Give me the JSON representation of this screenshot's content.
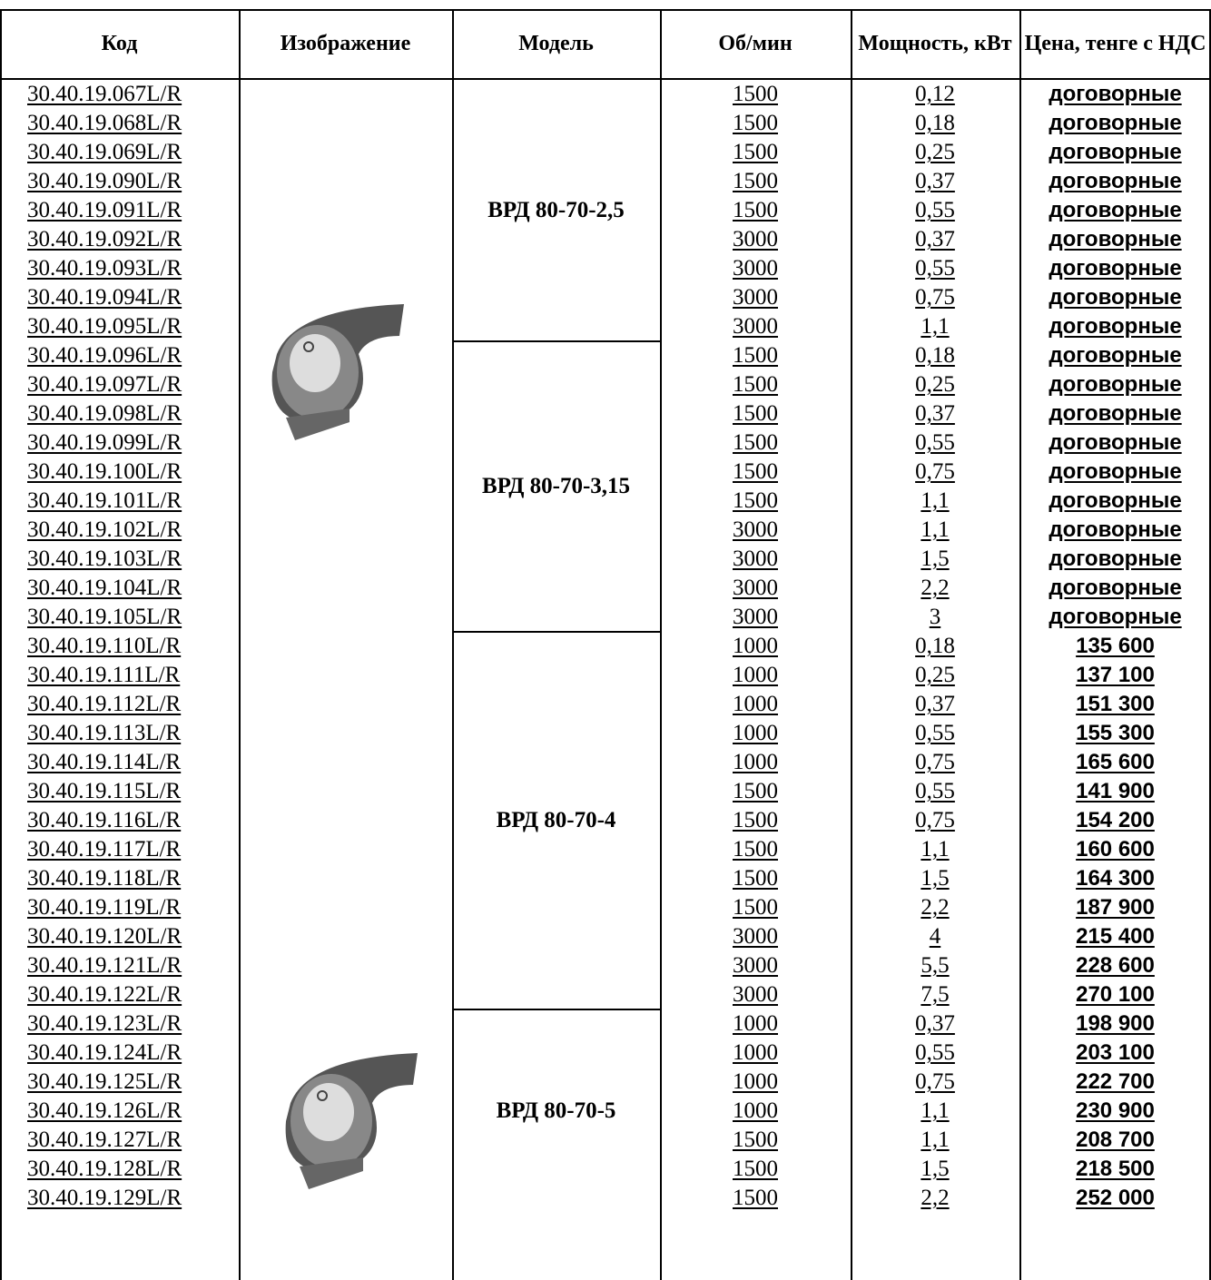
{
  "table": {
    "header": [
      "Код",
      "Изображение",
      "Модель",
      "Об/мин",
      "Мощность, кВт",
      "Цена, тенге с НДС"
    ],
    "groups": [
      {
        "model": "ВРД 80-70-2,5",
        "rows": [
          [
            "30.40.19.067L/R",
            "1500",
            "0,12",
            "договорные"
          ],
          [
            "30.40.19.068L/R",
            "1500",
            "0,18",
            "договорные"
          ],
          [
            "30.40.19.069L/R",
            "1500",
            "0,25",
            "договорные"
          ],
          [
            "30.40.19.090L/R",
            "1500",
            "0,37",
            "договорные"
          ],
          [
            "30.40.19.091L/R",
            "1500",
            "0,55",
            "договорные"
          ],
          [
            "30.40.19.092L/R",
            "3000",
            "0,37",
            "договорные"
          ],
          [
            "30.40.19.093L/R",
            "3000",
            "0,55",
            "договорные"
          ],
          [
            "30.40.19.094L/R",
            "3000",
            "0,75",
            "договорные"
          ],
          [
            "30.40.19.095L/R",
            "3000",
            "1,1",
            "договорные"
          ]
        ]
      },
      {
        "model": "ВРД 80-70-3,15",
        "rows": [
          [
            "30.40.19.096L/R",
            "1500",
            "0,18",
            "договорные"
          ],
          [
            "30.40.19.097L/R",
            "1500",
            "0,25",
            "договорные"
          ],
          [
            "30.40.19.098L/R",
            "1500",
            "0,37",
            "договорные"
          ],
          [
            "30.40.19.099L/R",
            "1500",
            "0,55",
            "договорные"
          ],
          [
            "30.40.19.100L/R",
            "1500",
            "0,75",
            "договорные"
          ],
          [
            "30.40.19.101L/R",
            "1500",
            "1,1",
            "договорные"
          ],
          [
            "30.40.19.102L/R",
            "3000",
            "1,1",
            "договорные"
          ],
          [
            "30.40.19.103L/R",
            "3000",
            "1,5",
            "договорные"
          ],
          [
            "30.40.19.104L/R",
            "3000",
            "2,2",
            "договорные"
          ],
          [
            "30.40.19.105L/R",
            "3000",
            "3",
            "договорные"
          ]
        ]
      },
      {
        "model": "ВРД 80-70-4",
        "rows": [
          [
            "30.40.19.110L/R",
            "1000",
            "0,18",
            "135 600"
          ],
          [
            "30.40.19.111L/R",
            "1000",
            "0,25",
            "137 100"
          ],
          [
            "30.40.19.112L/R",
            "1000",
            "0,37",
            "151 300"
          ],
          [
            "30.40.19.113L/R",
            "1000",
            "0,55",
            "155 300"
          ],
          [
            "30.40.19.114L/R",
            "1000",
            "0,75",
            "165 600"
          ],
          [
            "30.40.19.115L/R",
            "1500",
            "0,55",
            "141 900"
          ],
          [
            "30.40.19.116L/R",
            "1500",
            "0,75",
            "154 200"
          ],
          [
            "30.40.19.117L/R",
            "1500",
            "1,1",
            "160 600"
          ],
          [
            "30.40.19.118L/R",
            "1500",
            "1,5",
            "164 300"
          ],
          [
            "30.40.19.119L/R",
            "1500",
            "2,2",
            "187 900"
          ],
          [
            "30.40.19.120L/R",
            "3000",
            "4",
            "215 400"
          ],
          [
            "30.40.19.121L/R",
            "3000",
            "5,5",
            "228 600"
          ],
          [
            "30.40.19.122L/R",
            "3000",
            "7,5",
            "270 100"
          ]
        ]
      },
      {
        "model": "ВРД 80-70-5",
        "rows": [
          [
            "30.40.19.123L/R",
            "1000",
            "0,37",
            "198 900"
          ],
          [
            "30.40.19.124L/R",
            "1000",
            "0,55",
            "203 100"
          ],
          [
            "30.40.19.125L/R",
            "1000",
            "0,75",
            "222 700"
          ],
          [
            "30.40.19.126L/R",
            "1000",
            "1,1",
            "230 900"
          ],
          [
            "30.40.19.127L/R",
            "1500",
            "1,1",
            "208 700"
          ],
          [
            "30.40.19.128L/R",
            "1500",
            "1,5",
            "218 500"
          ],
          [
            "30.40.19.129L/R",
            "1500",
            "2,2",
            "252 000"
          ]
        ]
      }
    ]
  }
}
